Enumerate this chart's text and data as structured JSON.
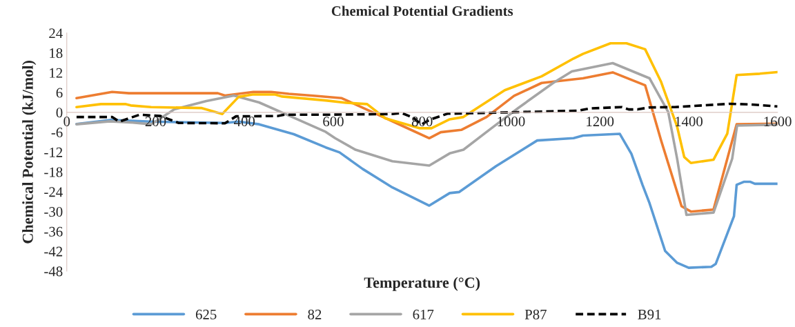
{
  "chart_data": {
    "type": "line",
    "title": "Chemical Potential Gradients",
    "xlabel": "Temperature (°C)",
    "ylabel": "Chemical Potential (kJ/mol)",
    "xlim": [
      0,
      1600
    ],
    "xticks": [
      0,
      200,
      400,
      600,
      800,
      1000,
      1200,
      1400,
      1600
    ],
    "ylim": [
      -48,
      24
    ],
    "yticks": [
      -48,
      -42,
      -36,
      -30,
      -24,
      -18,
      -12,
      -6,
      0,
      6,
      12,
      18,
      24
    ],
    "legend": "bottom",
    "series": [
      {
        "name": "625",
        "color": "#5b9bd5",
        "x": [
          22,
          97,
          190,
          356,
          387,
          433,
          511,
          583,
          614,
          666,
          733,
          816,
          862,
          883,
          966,
          1059,
          1141,
          1162,
          1245,
          1271,
          1296,
          1312,
          1347,
          1374,
          1400,
          1451,
          1461,
          1502,
          1508,
          1524,
          1539,
          1549,
          1600
        ],
        "values": [
          -3.5,
          -2.3,
          -2.8,
          -3.2,
          -2.8,
          -3.6,
          -6.6,
          -10.6,
          -12.1,
          -17.1,
          -22.7,
          -28.2,
          -24.4,
          -24.1,
          -16.3,
          -8.5,
          -7.8,
          -7.0,
          -6.5,
          -12.5,
          -21.9,
          -27.5,
          -41.9,
          -45.5,
          -47.0,
          -46.7,
          -45.8,
          -31.4,
          -21.9,
          -21.0,
          -21.0,
          -21.6,
          -21.6
        ]
      },
      {
        "name": "82",
        "color": "#ed7d31",
        "x": [
          22,
          102,
          140,
          340,
          356,
          420,
          460,
          500,
          560,
          619,
          655,
          707,
          759,
          816,
          842,
          888,
          945,
          1007,
          1069,
          1141,
          1162,
          1229,
          1302,
          1338,
          1384,
          1405,
          1456,
          1508,
          1600
        ],
        "values": [
          4.3,
          6.2,
          5.8,
          5.8,
          5.1,
          6.2,
          6.2,
          5.6,
          5.0,
          4.3,
          2.1,
          -1.1,
          -4.3,
          -7.8,
          -6.0,
          -5.3,
          -1.4,
          5.0,
          8.9,
          10.0,
          10.3,
          12.1,
          8.2,
          -8.5,
          -28.4,
          -30.0,
          -29.4,
          -3.6,
          -3.4
        ]
      },
      {
        "name": "617",
        "color": "#a5a5a5",
        "x": [
          22,
          97,
          149,
          190,
          242,
          314,
          376,
          433,
          511,
          583,
          604,
          650,
          733,
          816,
          862,
          893,
          955,
          1017,
          1095,
          1137,
          1229,
          1312,
          1354,
          1374,
          1395,
          1456,
          1498,
          1509,
          1600
        ],
        "values": [
          -3.6,
          -2.7,
          -3.1,
          -3.6,
          0.9,
          3.4,
          5.1,
          3.0,
          -1.6,
          -5.9,
          -7.8,
          -11.3,
          -14.8,
          -16.1,
          -12.4,
          -11.3,
          -4.9,
          1.4,
          8.9,
          12.4,
          14.9,
          10.3,
          0.1,
          -14.0,
          -31.0,
          -30.3,
          -14.0,
          -4.0,
          -3.7
        ]
      },
      {
        "name": "P87",
        "color": "#ffc000",
        "x": [
          22,
          77,
          133,
          144,
          190,
          304,
          350,
          387,
          418,
          469,
          485,
          583,
          629,
          676,
          717,
          795,
          821,
          862,
          893,
          986,
          1069,
          1141,
          1162,
          1224,
          1260,
          1302,
          1338,
          1374,
          1390,
          1405,
          1456,
          1487,
          1508,
          1560,
          1600
        ],
        "values": [
          1.6,
          2.5,
          2.5,
          2.1,
          1.6,
          1.3,
          -0.5,
          4.7,
          5.4,
          5.4,
          4.8,
          3.6,
          2.9,
          2.5,
          -1.8,
          -4.8,
          -4.8,
          -2.1,
          -1.4,
          6.7,
          10.9,
          16.3,
          17.7,
          20.9,
          20.9,
          19.1,
          9.2,
          -4.3,
          -13.5,
          -15.3,
          -14.3,
          -6.4,
          11.3,
          11.7,
          12.2
        ]
      },
      {
        "name": "B91",
        "color": "#000000",
        "line_style": "dashed",
        "x": [
          22,
          102,
          118,
          164,
          211,
          252,
          356,
          381,
          474,
          490,
          583,
          733,
          754,
          780,
          798,
          816,
          857,
          1151,
          1177,
          1250,
          1265,
          1285,
          1312,
          1369,
          1456,
          1493,
          1540,
          1600
        ],
        "values": [
          -1.4,
          -1.4,
          -2.8,
          -0.7,
          -1.1,
          -3.2,
          -3.3,
          -1.2,
          -1.1,
          -0.7,
          -0.7,
          -0.5,
          -0.2,
          -1.6,
          -3.7,
          -2.3,
          -0.4,
          0.5,
          1.2,
          1.6,
          0.9,
          0.9,
          1.5,
          1.6,
          2.3,
          2.6,
          2.4,
          1.8
        ]
      }
    ]
  }
}
